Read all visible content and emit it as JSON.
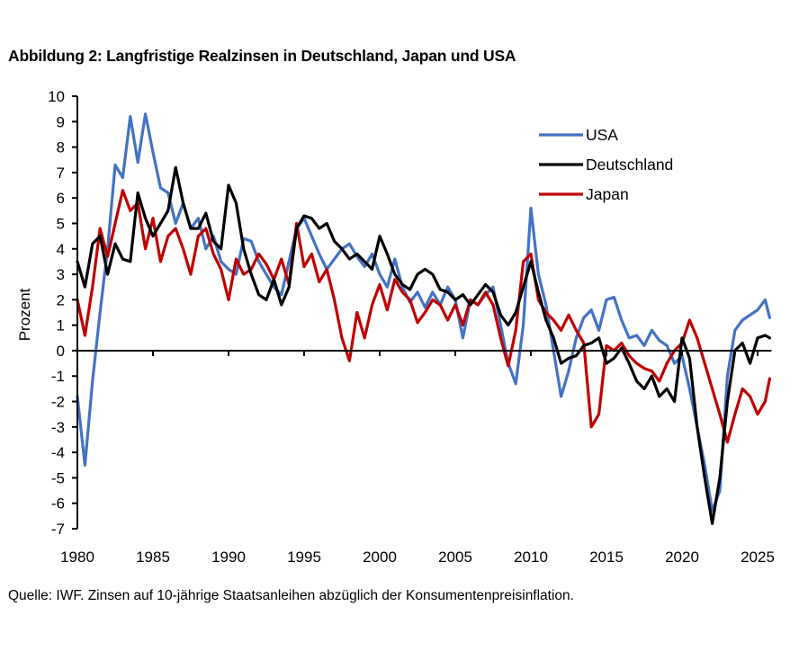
{
  "title": "Abbildung 2: Langfristige Realzinsen in Deutschland, Japan und USA",
  "source": "Quelle: IWF. Zinsen auf 10-jährige Staatsanleihen abzüglich der Konsumentenpreisinflation.",
  "chart_data": {
    "type": "line",
    "title": "Abbildung 2: Langfristige Realzinsen in Deutschland, Japan und USA",
    "xlabel": "",
    "ylabel": "Prozent",
    "xlim": [
      1980,
      2025.8
    ],
    "ylim": [
      -7,
      10
    ],
    "x_ticks": [
      1980,
      1985,
      1990,
      1995,
      2000,
      2005,
      2010,
      2015,
      2020,
      2025
    ],
    "x_tick_labels": [
      "1980",
      "1985",
      "1990",
      "1995",
      "2000",
      "2005",
      "2010",
      "2015",
      "2020",
      "2025"
    ],
    "y_ticks": [
      10,
      9,
      8,
      7,
      6,
      5,
      4,
      3,
      2,
      1,
      0,
      -1,
      -2,
      -3,
      -4,
      -5,
      -6,
      -7
    ],
    "y_tick_labels": [
      "10",
      "9",
      "8",
      "7",
      "6",
      "5",
      "4",
      "3",
      "2",
      "1",
      "0",
      "-1",
      "-2",
      "-3",
      "-4",
      "-5",
      "-6",
      "-7"
    ],
    "grid": false,
    "legend": {
      "position": "top-right",
      "entries": [
        "USA",
        "Deutschland",
        "Japan"
      ]
    },
    "x": [
      1980.0,
      1980.5,
      1981.0,
      1981.5,
      1982.0,
      1982.5,
      1983.0,
      1983.5,
      1984.0,
      1984.5,
      1985.0,
      1985.5,
      1986.0,
      1986.5,
      1987.0,
      1987.5,
      1988.0,
      1988.5,
      1989.0,
      1989.5,
      1990.0,
      1990.5,
      1991.0,
      1991.5,
      1992.0,
      1992.5,
      1993.0,
      1993.5,
      1994.0,
      1994.5,
      1995.0,
      1995.5,
      1996.0,
      1996.5,
      1997.0,
      1997.5,
      1998.0,
      1998.5,
      1999.0,
      1999.5,
      2000.0,
      2000.5,
      2001.0,
      2001.5,
      2002.0,
      2002.5,
      2003.0,
      2003.5,
      2004.0,
      2004.5,
      2005.0,
      2005.5,
      2006.0,
      2006.5,
      2007.0,
      2007.5,
      2008.0,
      2008.5,
      2009.0,
      2009.5,
      2010.0,
      2010.5,
      2011.0,
      2011.5,
      2012.0,
      2012.5,
      2013.0,
      2013.5,
      2014.0,
      2014.5,
      2015.0,
      2015.5,
      2016.0,
      2016.5,
      2017.0,
      2017.5,
      2018.0,
      2018.5,
      2019.0,
      2019.5,
      2020.0,
      2020.5,
      2021.0,
      2021.5,
      2022.0,
      2022.5,
      2023.0,
      2023.5,
      2024.0,
      2024.5,
      2025.0,
      2025.5,
      2025.8
    ],
    "series": [
      {
        "name": "USA",
        "color": "#4472C4",
        "values": [
          -1.8,
          -4.5,
          -1.2,
          1.5,
          4.0,
          7.3,
          6.8,
          9.2,
          7.4,
          9.3,
          7.8,
          6.4,
          6.2,
          5.0,
          5.8,
          4.8,
          5.2,
          4.0,
          4.5,
          3.5,
          3.2,
          3.0,
          4.4,
          4.3,
          3.5,
          3.0,
          2.5,
          2.2,
          3.5,
          4.8,
          5.2,
          4.5,
          3.8,
          3.2,
          3.6,
          4.0,
          4.2,
          3.7,
          3.3,
          3.8,
          3.0,
          2.5,
          3.6,
          2.5,
          1.9,
          2.3,
          1.7,
          2.3,
          1.8,
          2.5,
          2.0,
          0.5,
          2.0,
          1.8,
          2.2,
          2.5,
          1.0,
          -0.5,
          -1.3,
          1.0,
          5.6,
          3.0,
          1.8,
          0.0,
          -1.8,
          -0.8,
          0.5,
          1.3,
          1.6,
          0.8,
          2.0,
          2.1,
          1.2,
          0.5,
          0.6,
          0.2,
          0.8,
          0.4,
          0.2,
          -0.5,
          -0.2,
          -1.5,
          -3.0,
          -4.5,
          -6.3,
          -5.5,
          -1.0,
          0.8,
          1.2,
          1.4,
          1.6,
          2.0,
          1.3
        ]
      },
      {
        "name": "Deutschland",
        "color": "#000000",
        "values": [
          3.5,
          2.5,
          4.2,
          4.5,
          3.0,
          4.2,
          3.6,
          3.5,
          6.2,
          5.2,
          4.5,
          5.0,
          5.5,
          7.2,
          5.8,
          4.8,
          4.8,
          5.4,
          4.3,
          4.0,
          6.5,
          5.8,
          4.0,
          3.0,
          2.2,
          2.0,
          2.8,
          1.8,
          2.5,
          4.8,
          5.3,
          5.2,
          4.8,
          5.0,
          4.3,
          4.0,
          3.6,
          3.8,
          3.5,
          3.2,
          4.5,
          3.8,
          3.0,
          2.6,
          2.4,
          3.0,
          3.2,
          3.0,
          2.4,
          2.3,
          2.0,
          2.2,
          1.8,
          2.2,
          2.6,
          2.3,
          1.4,
          1.0,
          1.5,
          2.5,
          3.5,
          2.3,
          1.2,
          0.5,
          -0.5,
          -0.3,
          -0.2,
          0.2,
          0.3,
          0.5,
          -0.5,
          -0.3,
          0.1,
          -0.5,
          -1.2,
          -1.5,
          -1.0,
          -1.8,
          -1.5,
          -2.0,
          0.5,
          -0.3,
          -3.0,
          -5.0,
          -6.8,
          -5.0,
          -2.0,
          0.0,
          0.3,
          -0.5,
          0.5,
          0.6,
          0.5
        ]
      },
      {
        "name": "Japan",
        "color": "#C00000",
        "values": [
          2.0,
          0.6,
          2.5,
          4.8,
          3.7,
          5.0,
          6.3,
          5.5,
          5.8,
          4.0,
          5.2,
          3.5,
          4.5,
          4.8,
          4.0,
          3.0,
          4.5,
          4.8,
          3.8,
          3.2,
          2.0,
          3.6,
          3.0,
          3.2,
          3.8,
          3.4,
          2.8,
          3.6,
          2.6,
          5.0,
          3.3,
          3.8,
          2.7,
          3.2,
          2.0,
          0.5,
          -0.4,
          1.5,
          0.5,
          1.8,
          2.6,
          1.6,
          2.8,
          2.3,
          2.0,
          1.1,
          1.5,
          2.0,
          1.8,
          1.2,
          1.8,
          1.0,
          2.0,
          1.8,
          2.3,
          1.8,
          0.5,
          -0.6,
          0.8,
          3.5,
          3.8,
          2.0,
          1.5,
          1.2,
          0.8,
          1.4,
          0.8,
          0.3,
          -3.0,
          -2.5,
          0.2,
          0.0,
          0.3,
          -0.2,
          -0.5,
          -0.7,
          -0.8,
          -1.2,
          -0.5,
          0.0,
          0.3,
          1.2,
          0.5,
          -0.5,
          -1.5,
          -2.5,
          -3.6,
          -2.5,
          -1.5,
          -1.8,
          -2.5,
          -2.0,
          -1.1
        ]
      }
    ]
  }
}
